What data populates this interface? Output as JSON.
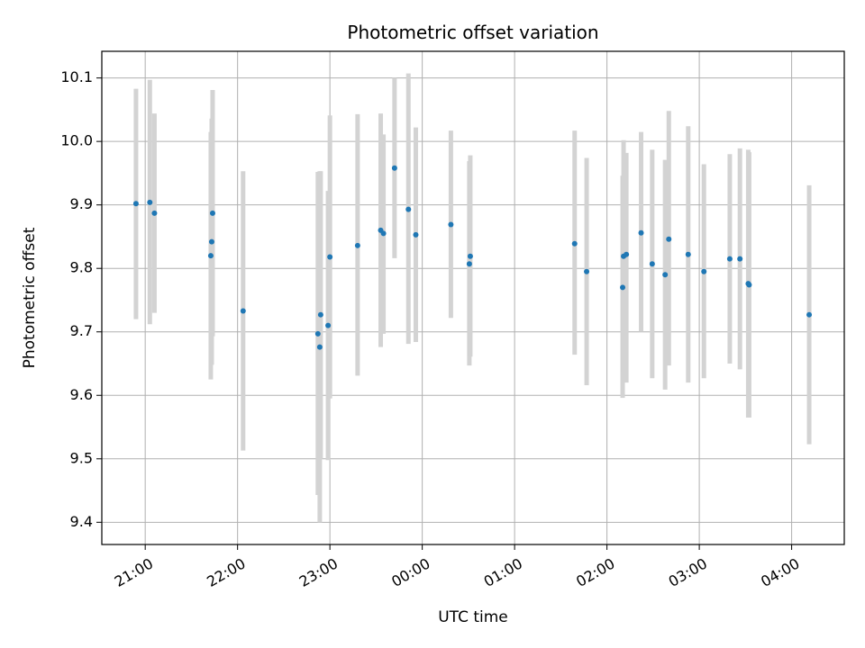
{
  "chart_data": {
    "type": "scatter",
    "title": "Photometric offset variation",
    "xlabel": "UTC time",
    "ylabel": "Photometric offset",
    "x_ticks": [
      "21:00",
      "22:00",
      "23:00",
      "00:00",
      "01:00",
      "02:00",
      "03:00",
      "04:00"
    ],
    "y_ticks": [
      "9.4",
      "9.5",
      "9.6",
      "9.7",
      "9.8",
      "9.9",
      "10.0",
      "10.1"
    ],
    "xlim_hours": [
      20.53,
      28.57
    ],
    "ylim": [
      9.365,
      10.142
    ],
    "grid": true,
    "colors": {
      "point": "#1f77b4",
      "errorbar": "#d3d3d3",
      "grid": "#b0b0b0"
    },
    "series": [
      {
        "points": [
          {
            "x": 20.9,
            "y": 9.902,
            "lo": 9.72,
            "hi": 10.083
          },
          {
            "x": 21.05,
            "y": 9.904,
            "lo": 9.712,
            "hi": 10.097
          },
          {
            "x": 21.1,
            "y": 9.887,
            "lo": 9.73,
            "hi": 10.044
          },
          {
            "x": 21.71,
            "y": 9.82,
            "lo": 9.625,
            "hi": 10.015
          },
          {
            "x": 21.72,
            "y": 9.842,
            "lo": 9.648,
            "hi": 10.036
          },
          {
            "x": 21.73,
            "y": 9.887,
            "lo": 9.693,
            "hi": 10.081
          },
          {
            "x": 22.06,
            "y": 9.733,
            "lo": 9.513,
            "hi": 9.953
          },
          {
            "x": 22.87,
            "y": 9.697,
            "lo": 9.443,
            "hi": 9.952
          },
          {
            "x": 22.89,
            "y": 9.676,
            "lo": 9.4,
            "hi": 9.953
          },
          {
            "x": 22.9,
            "y": 9.727,
            "lo": 9.5,
            "hi": 9.953
          },
          {
            "x": 22.98,
            "y": 9.71,
            "lo": 9.498,
            "hi": 9.922
          },
          {
            "x": 23.0,
            "y": 9.818,
            "lo": 9.595,
            "hi": 10.041
          },
          {
            "x": 23.3,
            "y": 9.836,
            "lo": 9.631,
            "hi": 10.043
          },
          {
            "x": 23.55,
            "y": 9.86,
            "lo": 9.676,
            "hi": 10.044
          },
          {
            "x": 23.58,
            "y": 9.855,
            "lo": 9.697,
            "hi": 10.011
          },
          {
            "x": 23.7,
            "y": 9.958,
            "lo": 9.816,
            "hi": 10.1
          },
          {
            "x": 23.85,
            "y": 9.893,
            "lo": 9.681,
            "hi": 10.107
          },
          {
            "x": 23.93,
            "y": 9.853,
            "lo": 9.684,
            "hi": 10.022
          },
          {
            "x": 24.31,
            "y": 9.869,
            "lo": 9.722,
            "hi": 10.017
          },
          {
            "x": 24.51,
            "y": 9.807,
            "lo": 9.647,
            "hi": 9.969
          },
          {
            "x": 24.52,
            "y": 9.819,
            "lo": 9.661,
            "hi": 9.978
          },
          {
            "x": 25.65,
            "y": 9.839,
            "lo": 9.664,
            "hi": 10.017
          },
          {
            "x": 25.78,
            "y": 9.795,
            "lo": 9.616,
            "hi": 9.974
          },
          {
            "x": 26.17,
            "y": 9.77,
            "lo": 9.596,
            "hi": 9.946
          },
          {
            "x": 26.18,
            "y": 9.819,
            "lo": 9.637,
            "hi": 10.002
          },
          {
            "x": 26.21,
            "y": 9.822,
            "lo": 9.62,
            "hi": 9.982
          },
          {
            "x": 26.37,
            "y": 9.856,
            "lo": 9.7,
            "hi": 10.015
          },
          {
            "x": 26.49,
            "y": 9.807,
            "lo": 9.627,
            "hi": 9.987
          },
          {
            "x": 26.63,
            "y": 9.79,
            "lo": 9.609,
            "hi": 9.971
          },
          {
            "x": 26.67,
            "y": 9.846,
            "lo": 9.647,
            "hi": 10.048
          },
          {
            "x": 26.88,
            "y": 9.822,
            "lo": 9.62,
            "hi": 10.024
          },
          {
            "x": 27.05,
            "y": 9.795,
            "lo": 9.627,
            "hi": 9.964
          },
          {
            "x": 27.33,
            "y": 9.815,
            "lo": 9.65,
            "hi": 9.98
          },
          {
            "x": 27.44,
            "y": 9.815,
            "lo": 9.641,
            "hi": 9.989
          },
          {
            "x": 27.53,
            "y": 9.776,
            "lo": 9.565,
            "hi": 9.987
          },
          {
            "x": 27.54,
            "y": 9.774,
            "lo": 9.565,
            "hi": 9.983
          },
          {
            "x": 28.19,
            "y": 9.727,
            "lo": 9.523,
            "hi": 9.931
          }
        ]
      }
    ]
  }
}
